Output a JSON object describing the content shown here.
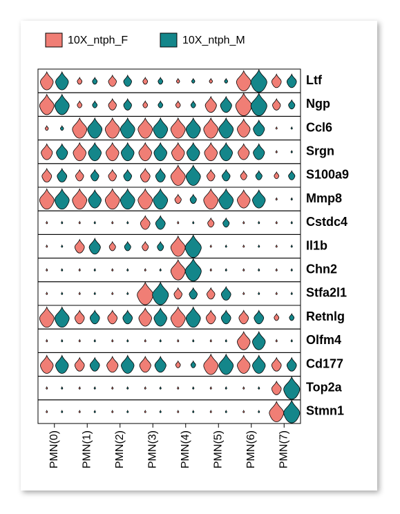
{
  "chart_data": {
    "type": "violin",
    "categories": [
      "PMN(0)",
      "PMN(1)",
      "PMN(2)",
      "PMN(3)",
      "PMN(4)",
      "PMN(5)",
      "PMN(6)",
      "PMN(7)"
    ],
    "genes": [
      "Ltf",
      "Ngp",
      "Ccl6",
      "Srgn",
      "S100a9",
      "Mmp8",
      "Cstdc4",
      "Il1b",
      "Chn2",
      "Stfa2l1",
      "Retnlg",
      "Olfm4",
      "Cd177",
      "Top2a",
      "Stmn1"
    ],
    "series": [
      {
        "name": "10X_ntph_F",
        "color": "#f07e75",
        "values": [
          [
            0.8,
            0.3,
            0.5,
            0.3,
            0.2,
            0.2,
            0.9,
            0.6
          ],
          [
            0.9,
            0.3,
            0.5,
            0.3,
            0.3,
            0.7,
            1,
            0.5
          ],
          [
            0.2,
            0.9,
            0.9,
            0.9,
            0.9,
            0.9,
            0.8,
            0.1
          ],
          [
            0.7,
            0.8,
            0.8,
            0.8,
            0.8,
            0.8,
            0.7,
            0.1
          ],
          [
            0.6,
            0.5,
            0.5,
            0.6,
            0.9,
            0.5,
            0.4,
            0.3
          ],
          [
            0.9,
            0.9,
            0.9,
            0.9,
            0.4,
            0.9,
            0.8,
            0.1
          ],
          [
            0.1,
            0.1,
            0.1,
            0.6,
            0.1,
            0.4,
            0.1,
            0.1
          ],
          [
            0.1,
            0.6,
            0.4,
            0.4,
            0.9,
            0.1,
            0.1,
            0.1
          ],
          [
            0.1,
            0.1,
            0.1,
            0.1,
            0.9,
            0.1,
            0.1,
            0.1
          ],
          [
            0.1,
            0.1,
            0.1,
            1,
            0.5,
            0.5,
            0.1,
            0.1
          ],
          [
            0.9,
            0.6,
            0.6,
            0.8,
            0.9,
            0.6,
            0.6,
            0.3
          ],
          [
            0.1,
            0.1,
            0.1,
            0.1,
            0.1,
            0.1,
            0.8,
            0.1
          ],
          [
            0.8,
            0.6,
            0.7,
            0.7,
            0.3,
            0.9,
            0.8,
            0.6
          ],
          [
            0.1,
            0.1,
            0.1,
            0.1,
            0.1,
            0.1,
            0.1,
            0.6
          ],
          [
            0.1,
            0.1,
            0.1,
            0.1,
            0.1,
            0.1,
            0.1,
            0.9
          ]
        ]
      },
      {
        "name": "10X_ntph_M",
        "color": "#14868a",
        "values": [
          [
            0.8,
            0.3,
            0.5,
            0.3,
            0.2,
            0.2,
            1,
            0.6
          ],
          [
            0.9,
            0.3,
            0.5,
            0.3,
            0.3,
            0.7,
            1,
            0.4
          ],
          [
            0.2,
            0.9,
            0.9,
            0.9,
            0.9,
            0.9,
            0.7,
            0.1
          ],
          [
            0.7,
            0.8,
            0.8,
            0.8,
            0.8,
            0.8,
            0.7,
            0.1
          ],
          [
            0.6,
            0.5,
            0.5,
            0.6,
            0.9,
            0.5,
            0.4,
            0.4
          ],
          [
            0.9,
            0.8,
            0.9,
            0.9,
            0.4,
            0.9,
            0.8,
            0.1
          ],
          [
            0.1,
            0.1,
            0.1,
            0.6,
            0.1,
            0.4,
            0.1,
            0.1
          ],
          [
            0.1,
            0.7,
            0.4,
            0.4,
            1,
            0.1,
            0.1,
            0.1
          ],
          [
            0.1,
            0.1,
            0.1,
            0.1,
            1,
            0.1,
            0.1,
            0.1
          ],
          [
            0.1,
            0.1,
            0.1,
            1,
            0.5,
            0.6,
            0.1,
            0.1
          ],
          [
            0.9,
            0.6,
            0.6,
            0.8,
            0.9,
            0.6,
            0.6,
            0.3
          ],
          [
            0.1,
            0.1,
            0.1,
            0.1,
            0.1,
            0.1,
            0.8,
            0.1
          ],
          [
            0.8,
            0.6,
            0.8,
            0.7,
            0.3,
            0.9,
            0.8,
            0.6
          ],
          [
            0.1,
            0.1,
            0.1,
            0.1,
            0.1,
            0.1,
            0.1,
            1
          ],
          [
            0.1,
            0.1,
            0.1,
            0.1,
            0.1,
            0.1,
            0.1,
            1
          ]
        ]
      }
    ]
  }
}
